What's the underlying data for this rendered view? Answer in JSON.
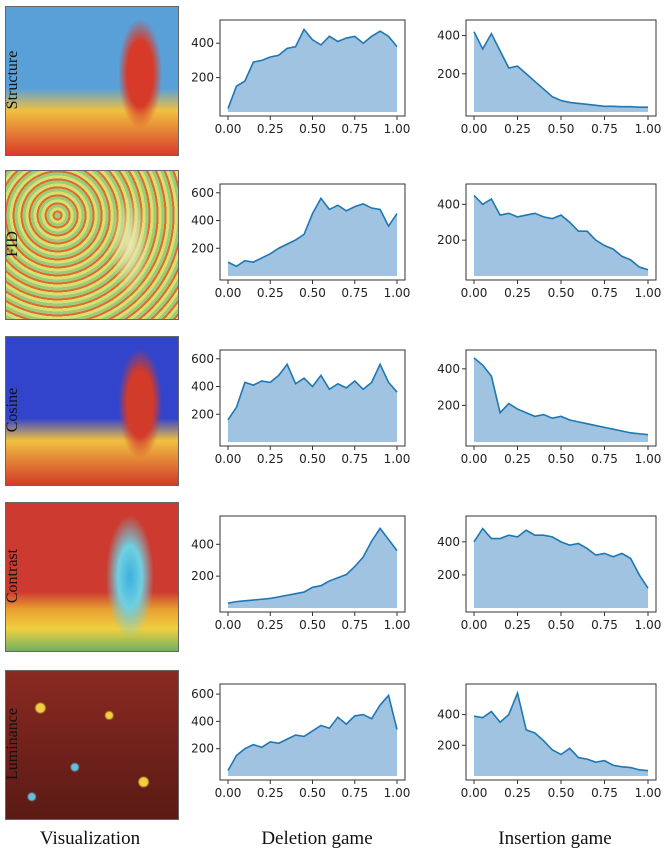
{
  "columns": {
    "visualization": "Visualization",
    "deletion": "Deletion game",
    "insertion": "Insertion game"
  },
  "rows": [
    {
      "label": "Structure",
      "heatmap": {
        "base": "#5aa0d8",
        "hot": "#d83a2a",
        "focus": "subject"
      }
    },
    {
      "label": "FID",
      "heatmap": {
        "base": "#9ccc7a",
        "hot": "#e06a30",
        "focus": "noise"
      }
    },
    {
      "label": "Cosine",
      "heatmap": {
        "base": "#3344cc",
        "hot": "#d23a2a",
        "focus": "subject"
      }
    },
    {
      "label": "Contrast",
      "heatmap": {
        "base": "#cc3a30",
        "hot": "#3bb0e0",
        "focus": "subject-cool"
      }
    },
    {
      "label": "Luminance",
      "heatmap": {
        "base": "#8a2a22",
        "hot": "#f0d040",
        "focus": "blobs"
      }
    }
  ],
  "colors": {
    "line": "#1f77b4",
    "fill": "#9fc3e0"
  },
  "chart_data": [
    {
      "type": "area",
      "row": "Structure",
      "game": "Deletion game",
      "xlim": [
        0,
        1
      ],
      "ylim": [
        0,
        500
      ],
      "xticks": [
        "0.00",
        "0.25",
        "0.50",
        "0.75",
        "1.00"
      ],
      "yticks": [
        "200",
        "400"
      ],
      "x": [
        0,
        0.05,
        0.1,
        0.15,
        0.2,
        0.25,
        0.3,
        0.35,
        0.4,
        0.45,
        0.5,
        0.55,
        0.6,
        0.65,
        0.7,
        0.75,
        0.8,
        0.85,
        0.9,
        0.95,
        1.0
      ],
      "y": [
        20,
        150,
        180,
        290,
        300,
        320,
        330,
        370,
        380,
        480,
        420,
        390,
        440,
        410,
        430,
        440,
        400,
        440,
        470,
        440,
        380
      ]
    },
    {
      "type": "area",
      "row": "Structure",
      "game": "Insertion game",
      "xlim": [
        0,
        1
      ],
      "ylim": [
        0,
        450
      ],
      "xticks": [
        "0.00",
        "0.25",
        "0.50",
        "0.75",
        "1.00"
      ],
      "yticks": [
        "200",
        "400"
      ],
      "x": [
        0,
        0.05,
        0.1,
        0.15,
        0.2,
        0.25,
        0.3,
        0.35,
        0.4,
        0.45,
        0.5,
        0.55,
        0.6,
        0.65,
        0.7,
        0.75,
        0.8,
        0.85,
        0.9,
        0.95,
        1.0
      ],
      "y": [
        420,
        330,
        410,
        320,
        230,
        240,
        200,
        160,
        120,
        80,
        60,
        50,
        45,
        40,
        35,
        30,
        30,
        28,
        28,
        25,
        25
      ]
    },
    {
      "type": "area",
      "row": "FID",
      "game": "Deletion game",
      "xlim": [
        0,
        1
      ],
      "ylim": [
        0,
        620
      ],
      "xticks": [
        "0.00",
        "0.25",
        "0.50",
        "0.75",
        "1.00"
      ],
      "yticks": [
        "200",
        "400",
        "600"
      ],
      "x": [
        0,
        0.05,
        0.1,
        0.15,
        0.2,
        0.25,
        0.3,
        0.35,
        0.4,
        0.45,
        0.5,
        0.55,
        0.6,
        0.65,
        0.7,
        0.75,
        0.8,
        0.85,
        0.9,
        0.95,
        1.0
      ],
      "y": [
        100,
        70,
        110,
        100,
        130,
        160,
        200,
        230,
        260,
        300,
        450,
        560,
        480,
        510,
        470,
        500,
        520,
        490,
        480,
        360,
        450
      ]
    },
    {
      "type": "area",
      "row": "FID",
      "game": "Insertion game",
      "xlim": [
        0,
        1
      ],
      "ylim": [
        0,
        480
      ],
      "xticks": [
        "0.00",
        "0.25",
        "0.50",
        "0.75",
        "1.00"
      ],
      "yticks": [
        "200",
        "400"
      ],
      "x": [
        0,
        0.05,
        0.1,
        0.15,
        0.2,
        0.25,
        0.3,
        0.35,
        0.4,
        0.45,
        0.5,
        0.55,
        0.6,
        0.65,
        0.7,
        0.75,
        0.8,
        0.85,
        0.9,
        0.95,
        1.0
      ],
      "y": [
        450,
        400,
        430,
        340,
        350,
        330,
        340,
        350,
        330,
        320,
        340,
        300,
        250,
        250,
        200,
        170,
        150,
        110,
        90,
        50,
        35
      ]
    },
    {
      "type": "area",
      "row": "Cosine",
      "game": "Deletion game",
      "xlim": [
        0,
        1
      ],
      "ylim": [
        0,
        620
      ],
      "xticks": [
        "0.00",
        "0.25",
        "0.50",
        "0.75",
        "1.00"
      ],
      "yticks": [
        "200",
        "400",
        "600"
      ],
      "x": [
        0,
        0.05,
        0.1,
        0.15,
        0.2,
        0.25,
        0.3,
        0.35,
        0.4,
        0.45,
        0.5,
        0.55,
        0.6,
        0.65,
        0.7,
        0.75,
        0.8,
        0.85,
        0.9,
        0.95,
        1.0
      ],
      "y": [
        160,
        250,
        430,
        410,
        440,
        430,
        480,
        560,
        420,
        460,
        400,
        480,
        380,
        420,
        390,
        440,
        380,
        430,
        560,
        430,
        360
      ]
    },
    {
      "type": "area",
      "row": "Cosine",
      "game": "Insertion game",
      "xlim": [
        0,
        1
      ],
      "ylim": [
        0,
        470
      ],
      "xticks": [
        "0.00",
        "0.25",
        "0.50",
        "0.75",
        "1.00"
      ],
      "yticks": [
        "200",
        "400"
      ],
      "x": [
        0,
        0.05,
        0.1,
        0.15,
        0.2,
        0.25,
        0.3,
        0.35,
        0.4,
        0.45,
        0.5,
        0.55,
        0.6,
        0.65,
        0.7,
        0.75,
        0.8,
        0.85,
        0.9,
        0.95,
        1.0
      ],
      "y": [
        460,
        420,
        360,
        160,
        210,
        180,
        160,
        140,
        150,
        130,
        140,
        120,
        110,
        100,
        90,
        80,
        70,
        60,
        50,
        45,
        40
      ]
    },
    {
      "type": "area",
      "row": "Contrast",
      "game": "Deletion game",
      "xlim": [
        0,
        1
      ],
      "ylim": [
        0,
        540
      ],
      "xticks": [
        "0.00",
        "0.25",
        "0.50",
        "0.75",
        "1.00"
      ],
      "yticks": [
        "200",
        "400"
      ],
      "x": [
        0,
        0.05,
        0.1,
        0.15,
        0.2,
        0.25,
        0.3,
        0.35,
        0.4,
        0.45,
        0.5,
        0.55,
        0.6,
        0.65,
        0.7,
        0.75,
        0.8,
        0.85,
        0.9,
        0.95,
        1.0
      ],
      "y": [
        30,
        40,
        45,
        50,
        55,
        60,
        70,
        80,
        90,
        100,
        130,
        140,
        170,
        190,
        210,
        260,
        320,
        420,
        500,
        430,
        360
      ]
    },
    {
      "type": "area",
      "row": "Contrast",
      "game": "Insertion game",
      "xlim": [
        0,
        1
      ],
      "ylim": [
        0,
        520
      ],
      "xticks": [
        "0.00",
        "0.25",
        "0.50",
        "0.75",
        "1.00"
      ],
      "yticks": [
        "200",
        "400"
      ],
      "x": [
        0,
        0.05,
        0.1,
        0.15,
        0.2,
        0.25,
        0.3,
        0.35,
        0.4,
        0.45,
        0.5,
        0.55,
        0.6,
        0.65,
        0.7,
        0.75,
        0.8,
        0.85,
        0.9,
        0.95,
        1.0
      ],
      "y": [
        400,
        480,
        420,
        420,
        440,
        430,
        470,
        440,
        440,
        430,
        400,
        380,
        390,
        360,
        320,
        330,
        310,
        330,
        300,
        200,
        120
      ]
    },
    {
      "type": "area",
      "row": "Luminance",
      "game": "Deletion game",
      "xlim": [
        0,
        1
      ],
      "ylim": [
        0,
        630
      ],
      "xticks": [
        "0.00",
        "0.25",
        "0.50",
        "0.75",
        "1.00"
      ],
      "yticks": [
        "200",
        "400",
        "600"
      ],
      "x": [
        0,
        0.05,
        0.1,
        0.15,
        0.2,
        0.25,
        0.3,
        0.35,
        0.4,
        0.45,
        0.5,
        0.55,
        0.6,
        0.65,
        0.7,
        0.75,
        0.8,
        0.85,
        0.9,
        0.95,
        1.0
      ],
      "y": [
        40,
        150,
        200,
        230,
        210,
        250,
        240,
        270,
        300,
        290,
        330,
        370,
        350,
        430,
        380,
        440,
        450,
        420,
        520,
        590,
        340
      ]
    },
    {
      "type": "area",
      "row": "Luminance",
      "game": "Insertion game",
      "xlim": [
        0,
        1
      ],
      "ylim": [
        0,
        560
      ],
      "xticks": [
        "0.00",
        "0.25",
        "0.50",
        "0.75",
        "1.00"
      ],
      "yticks": [
        "400",
        "200"
      ],
      "x": [
        0,
        0.05,
        0.1,
        0.15,
        0.2,
        0.25,
        0.3,
        0.35,
        0.4,
        0.45,
        0.5,
        0.55,
        0.6,
        0.65,
        0.7,
        0.75,
        0.8,
        0.85,
        0.9,
        0.95,
        1.0
      ],
      "y": [
        390,
        380,
        420,
        350,
        400,
        540,
        300,
        280,
        230,
        170,
        140,
        180,
        120,
        110,
        90,
        100,
        70,
        60,
        55,
        40,
        35
      ]
    }
  ]
}
